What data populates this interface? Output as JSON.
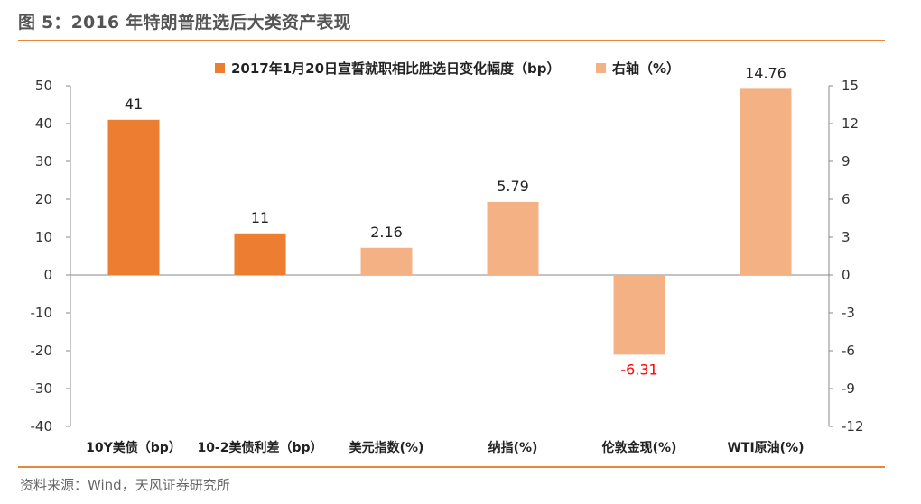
{
  "figure": {
    "title": "图 5：2016 年特朗普胜选后大类资产表现",
    "source": "资料来源：Wind，天风证券研究所"
  },
  "chart_data": {
    "type": "bar",
    "categories": [
      "10Y美债（bp）",
      "10-2美债利差（bp）",
      "美元指数(%)",
      "纳指(%)",
      "伦敦金现(%)",
      "WTI原油(%)"
    ],
    "series": [
      {
        "name": "2017年1月20日宣誓就职相比胜选日变化幅度（bp）",
        "axis": "left",
        "color": "#ed7d31",
        "values": [
          41,
          11,
          null,
          null,
          null,
          null
        ]
      },
      {
        "name": "右轴（%）",
        "axis": "right",
        "color": "#f4b183",
        "values": [
          null,
          null,
          2.16,
          5.79,
          -6.31,
          14.76
        ]
      }
    ],
    "data_labels": [
      "41",
      "11",
      "2.16",
      "5.79",
      "-6.31",
      "14.76"
    ],
    "negative_label_color": "#ff0000",
    "y_left": {
      "min": -40,
      "max": 50,
      "ticks": [
        50,
        40,
        30,
        20,
        10,
        0,
        -10,
        -20,
        -30,
        -40
      ]
    },
    "y_right": {
      "min": -12,
      "max": 15,
      "ticks": [
        15,
        12,
        9,
        6,
        3,
        0,
        -3,
        -6,
        -9,
        -12
      ]
    },
    "legend_position": "top",
    "grid": false
  }
}
